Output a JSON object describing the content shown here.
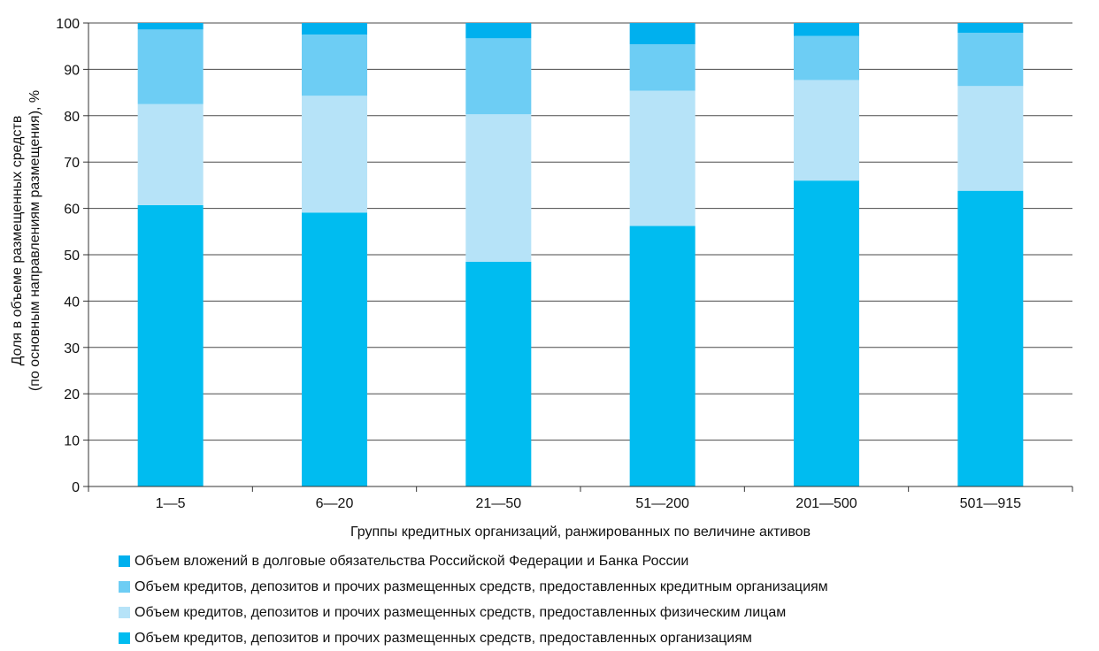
{
  "chart_data": {
    "type": "bar",
    "stacked": true,
    "categories": [
      "1—5",
      "6—20",
      "21—50",
      "51—200",
      "201—500",
      "501—915"
    ],
    "series": [
      {
        "name": "Объем кредитов, депозитов и прочих размещенных средств, предоставленных организациям",
        "color": "#00bcf0",
        "values": [
          60.7,
          59.1,
          48.5,
          56.2,
          66.0,
          63.8
        ]
      },
      {
        "name": "Объем кредитов, депозитов и прочих размещенных средств, предоставленных физическим лицам",
        "color": "#b6e3f8",
        "values": [
          21.8,
          25.2,
          31.8,
          29.2,
          21.7,
          22.6
        ]
      },
      {
        "name": "Объем кредитов, депозитов и прочих размещенных средств, предоставленных кредитным организациям",
        "color": "#6dcdf4",
        "values": [
          16.1,
          13.2,
          16.4,
          10.0,
          9.5,
          11.5
        ]
      },
      {
        "name": "Объем вложений в  долговые обязательства Российской Федерации и Банка России",
        "color": "#00b0ee",
        "values": [
          1.4,
          2.5,
          3.3,
          4.6,
          2.8,
          2.1
        ]
      }
    ],
    "legend_order": [
      3,
      2,
      1,
      0
    ],
    "legend_placement": "bottom",
    "xlabel": "Группы кредитных организаций, ранжированных по величине активов",
    "ylabel_line1": "Доля в объеме размещенных средств",
    "ylabel_line2": "(по основным направлениям размещения), %",
    "ylim": [
      0,
      100
    ],
    "yticks": [
      0,
      10,
      20,
      30,
      40,
      50,
      60,
      70,
      80,
      90,
      100
    ],
    "grid": true
  }
}
